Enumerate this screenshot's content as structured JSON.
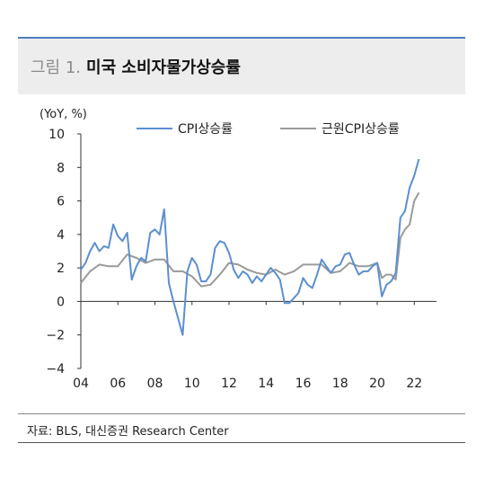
{
  "header": {
    "figure_label": "그림 1.",
    "figure_title": "미국 소비자물가상승률"
  },
  "source": "자료: BLS, 대신증권 Research Center",
  "colors": {
    "cpi": "#5b8fd0",
    "core_cpi": "#9a9a9a",
    "accent_rule": "#4a7fc0",
    "title_bg": "#ededed"
  },
  "chart_data": {
    "type": "line",
    "unit_label": "(YoY, %)",
    "ylim": [
      -4,
      10
    ],
    "yticks": [
      -4,
      -2,
      0,
      2,
      4,
      6,
      8,
      10
    ],
    "xlim": [
      2004,
      2023.2
    ],
    "xtick_values": [
      2004,
      2006,
      2008,
      2010,
      2012,
      2014,
      2016,
      2018,
      2020,
      2022
    ],
    "xtick_labels": [
      "04",
      "06",
      "08",
      "10",
      "12",
      "14",
      "16",
      "18",
      "20",
      "22"
    ],
    "grid": false,
    "legend_position": "top",
    "series": [
      {
        "name": "CPI상승률",
        "color": "#5b8fd0",
        "x": [
          2004.0,
          2004.25,
          2004.5,
          2004.75,
          2005.0,
          2005.25,
          2005.5,
          2005.75,
          2006.0,
          2006.25,
          2006.5,
          2006.75,
          2007.0,
          2007.25,
          2007.5,
          2007.75,
          2008.0,
          2008.25,
          2008.5,
          2008.75,
          2009.0,
          2009.25,
          2009.5,
          2009.75,
          2010.0,
          2010.25,
          2010.5,
          2010.75,
          2011.0,
          2011.25,
          2011.5,
          2011.75,
          2012.0,
          2012.25,
          2012.5,
          2012.75,
          2013.0,
          2013.25,
          2013.5,
          2013.75,
          2014.0,
          2014.25,
          2014.5,
          2014.75,
          2015.0,
          2015.25,
          2015.5,
          2015.75,
          2016.0,
          2016.25,
          2016.5,
          2016.75,
          2017.0,
          2017.25,
          2017.5,
          2017.75,
          2018.0,
          2018.25,
          2018.5,
          2018.75,
          2019.0,
          2019.25,
          2019.5,
          2019.75,
          2020.0,
          2020.25,
          2020.5,
          2020.75,
          2021.0,
          2021.25,
          2021.5,
          2021.75,
          2022.0,
          2022.25
        ],
        "values": [
          1.9,
          2.3,
          3.0,
          3.5,
          3.0,
          3.3,
          3.2,
          4.6,
          3.9,
          3.6,
          4.1,
          1.3,
          2.1,
          2.6,
          2.4,
          4.1,
          4.3,
          4.0,
          5.5,
          1.1,
          0.0,
          -1.0,
          -2.0,
          1.8,
          2.6,
          2.2,
          1.2,
          1.2,
          1.6,
          3.2,
          3.6,
          3.5,
          2.9,
          1.9,
          1.4,
          1.8,
          1.6,
          1.1,
          1.5,
          1.2,
          1.6,
          2.0,
          1.7,
          1.3,
          -0.1,
          -0.1,
          0.2,
          0.5,
          1.4,
          1.0,
          0.8,
          1.6,
          2.5,
          2.1,
          1.7,
          2.1,
          2.2,
          2.8,
          2.9,
          2.2,
          1.6,
          1.8,
          1.8,
          2.1,
          2.3,
          0.3,
          1.0,
          1.2,
          1.7,
          5.0,
          5.4,
          6.8,
          7.5,
          8.5
        ]
      },
      {
        "name": "근원CPI상승률",
        "color": "#9a9a9a",
        "x": [
          2004.0,
          2004.5,
          2005.0,
          2005.5,
          2006.0,
          2006.5,
          2007.0,
          2007.5,
          2008.0,
          2008.5,
          2009.0,
          2009.5,
          2010.0,
          2010.5,
          2011.0,
          2011.5,
          2012.0,
          2012.5,
          2013.0,
          2013.5,
          2014.0,
          2014.5,
          2015.0,
          2015.5,
          2016.0,
          2016.5,
          2017.0,
          2017.5,
          2018.0,
          2018.5,
          2019.0,
          2019.5,
          2020.0,
          2020.25,
          2020.5,
          2020.75,
          2021.0,
          2021.25,
          2021.5,
          2021.75,
          2022.0,
          2022.25
        ],
        "values": [
          1.1,
          1.8,
          2.2,
          2.1,
          2.1,
          2.8,
          2.6,
          2.3,
          2.5,
          2.5,
          1.8,
          1.8,
          1.5,
          0.9,
          1.0,
          1.6,
          2.3,
          2.2,
          1.9,
          1.7,
          1.6,
          1.9,
          1.6,
          1.8,
          2.2,
          2.2,
          2.2,
          1.7,
          1.8,
          2.3,
          2.1,
          2.1,
          2.3,
          1.4,
          1.6,
          1.6,
          1.3,
          3.8,
          4.3,
          4.6,
          6.0,
          6.5
        ]
      }
    ]
  }
}
